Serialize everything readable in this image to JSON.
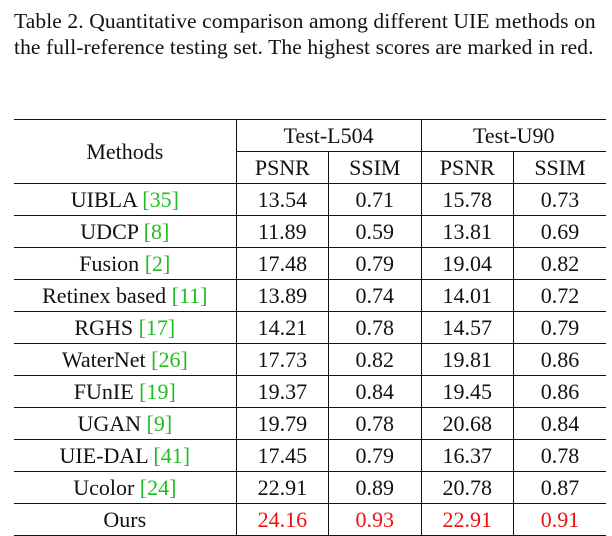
{
  "caption": "Table 2. Quantitative comparison among different UIE methods on the full-reference testing set. The highest scores are marked in red.",
  "header": {
    "methods": "Methods",
    "groups": [
      "Test-L504",
      "Test-U90"
    ],
    "metrics": [
      "PSNR",
      "SSIM",
      "PSNR",
      "SSIM"
    ]
  },
  "rows": [
    {
      "name": "UIBLA",
      "cite": "35",
      "values": [
        "13.54",
        "0.71",
        "15.78",
        "0.73"
      ]
    },
    {
      "name": "UDCP",
      "cite": "8",
      "values": [
        "11.89",
        "0.59",
        "13.81",
        "0.69"
      ]
    },
    {
      "name": "Fusion",
      "cite": "2",
      "values": [
        "17.48",
        "0.79",
        "19.04",
        "0.82"
      ]
    },
    {
      "name": "Retinex based",
      "cite": "11",
      "values": [
        "13.89",
        "0.74",
        "14.01",
        "0.72"
      ]
    },
    {
      "name": "RGHS",
      "cite": "17",
      "values": [
        "14.21",
        "0.78",
        "14.57",
        "0.79"
      ]
    },
    {
      "name": "WaterNet",
      "cite": "26",
      "values": [
        "17.73",
        "0.82",
        "19.81",
        "0.86"
      ]
    },
    {
      "name": "FUnIE",
      "cite": "19",
      "values": [
        "19.37",
        "0.84",
        "19.45",
        "0.86"
      ]
    },
    {
      "name": "UGAN",
      "cite": "9",
      "values": [
        "19.79",
        "0.78",
        "20.68",
        "0.84"
      ]
    },
    {
      "name": "UIE-DAL",
      "cite": "41",
      "values": [
        "17.45",
        "0.79",
        "16.37",
        "0.78"
      ]
    },
    {
      "name": "Ucolor",
      "cite": "24",
      "values": [
        "22.91",
        "0.89",
        "20.78",
        "0.87"
      ]
    },
    {
      "name": "Ours",
      "cite": "",
      "values": [
        "24.16",
        "0.93",
        "22.91",
        "0.91"
      ],
      "highlight": true
    }
  ],
  "colors": {
    "citation": "#22bb22",
    "highlight": "#ee1111"
  }
}
